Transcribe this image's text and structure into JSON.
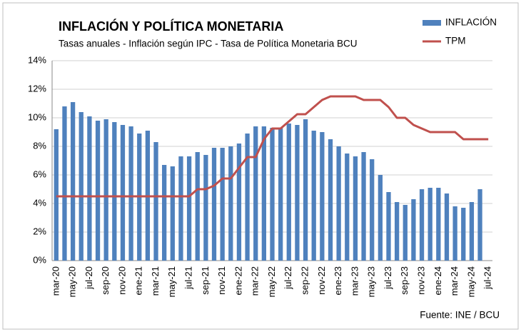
{
  "chart_data": {
    "type": "bar-line",
    "title": "INFLACIÓN Y POLÍTICA MONETARIA",
    "subtitle": "Tasas anuales - Inflación según IPC - Tasa de Política Monetaria BCU",
    "source": "Fuente: INE / BCU",
    "categories": [
      "mar-20",
      null,
      "may-20",
      null,
      "jul-20",
      null,
      "sep-20",
      null,
      "nov-20",
      null,
      "ene-21",
      null,
      "mar-21",
      null,
      "may-21",
      null,
      "jul-21",
      null,
      "sep-21",
      null,
      "nov-21",
      null,
      "ene-22",
      null,
      "mar-22",
      null,
      "may-22",
      null,
      "jul-22",
      null,
      "sep-22",
      null,
      "nov-22",
      null,
      "ene-23",
      null,
      "mar-23",
      null,
      "may-23",
      null,
      "jul-23",
      null,
      "sep-23",
      null,
      "nov-23",
      null,
      "ene-24",
      null,
      "mar-24",
      null,
      "may-24",
      null,
      "jul-24"
    ],
    "series": [
      {
        "name": "INFLACIÓN",
        "kind": "bar",
        "color": "#4f81bd",
        "values": [
          9.2,
          10.8,
          11.1,
          10.4,
          10.1,
          9.8,
          9.9,
          9.7,
          9.5,
          9.4,
          8.9,
          9.1,
          8.3,
          6.7,
          6.6,
          7.3,
          7.3,
          7.6,
          7.4,
          7.9,
          7.9,
          8.0,
          8.2,
          8.9,
          9.4,
          9.4,
          9.3,
          9.3,
          9.6,
          9.5,
          9.9,
          9.1,
          9.0,
          8.5,
          8.0,
          7.5,
          7.3,
          7.6,
          7.1,
          6.0,
          4.8,
          4.1,
          3.9,
          4.3,
          5.0,
          5.1,
          5.1,
          4.7,
          3.8,
          3.7,
          4.1,
          5.0,
          null
        ]
      },
      {
        "name": "TPM",
        "kind": "line",
        "color": "#c0504d",
        "values": [
          4.5,
          4.5,
          4.5,
          4.5,
          4.5,
          4.5,
          4.5,
          4.5,
          4.5,
          4.5,
          4.5,
          4.5,
          4.5,
          4.5,
          4.5,
          4.5,
          4.5,
          5.0,
          5.0,
          5.25,
          5.75,
          5.75,
          6.5,
          7.25,
          7.25,
          8.5,
          9.25,
          9.25,
          9.75,
          10.25,
          10.25,
          10.75,
          11.25,
          11.5,
          11.5,
          11.5,
          11.5,
          11.25,
          11.25,
          11.25,
          10.75,
          10.0,
          10.0,
          9.5,
          9.25,
          9.0,
          9.0,
          9.0,
          9.0,
          8.5,
          8.5,
          8.5,
          8.5
        ]
      }
    ],
    "ylim": [
      0,
      14
    ],
    "yticks": [
      {
        "value": 0,
        "label": "0%"
      },
      {
        "value": 2,
        "label": "2%"
      },
      {
        "value": 4,
        "label": "4%"
      },
      {
        "value": 6,
        "label": "6%"
      },
      {
        "value": 8,
        "label": "8%"
      },
      {
        "value": 10,
        "label": "10%"
      },
      {
        "value": 12,
        "label": "12%"
      },
      {
        "value": 14,
        "label": "14%"
      }
    ],
    "grid": true
  }
}
